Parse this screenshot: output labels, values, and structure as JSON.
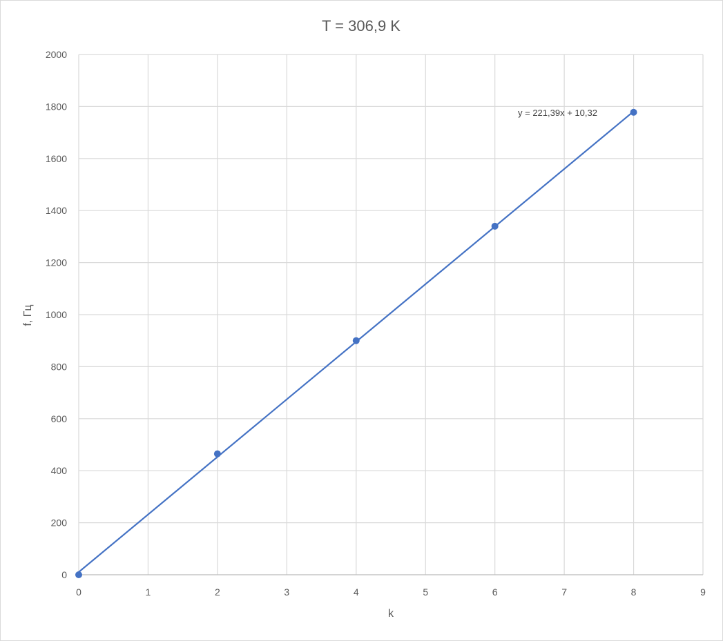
{
  "chart_data": {
    "type": "scatter",
    "title": "T = 306,9 K",
    "xlabel": "k",
    "ylabel": "f, Гц",
    "xlim": [
      0,
      9
    ],
    "ylim": [
      0,
      2000
    ],
    "x_ticks": [
      "0",
      "1",
      "2",
      "3",
      "4",
      "5",
      "6",
      "7",
      "8",
      "9"
    ],
    "y_ticks": [
      "0",
      "200",
      "400",
      "600",
      "800",
      "1000",
      "1200",
      "1400",
      "1600",
      "1800",
      "2000"
    ],
    "grid": true,
    "legend": "none",
    "series": [
      {
        "x": [
          0,
          2,
          4,
          6,
          8
        ],
        "y": [
          0,
          465,
          900,
          1340,
          1778
        ],
        "color": "#4472C4"
      }
    ],
    "trendline": {
      "type": "linear",
      "slope": 221.39,
      "intercept": 10.32,
      "equation": "y = 221,39x + 10,32",
      "color": "#4472C4"
    }
  }
}
